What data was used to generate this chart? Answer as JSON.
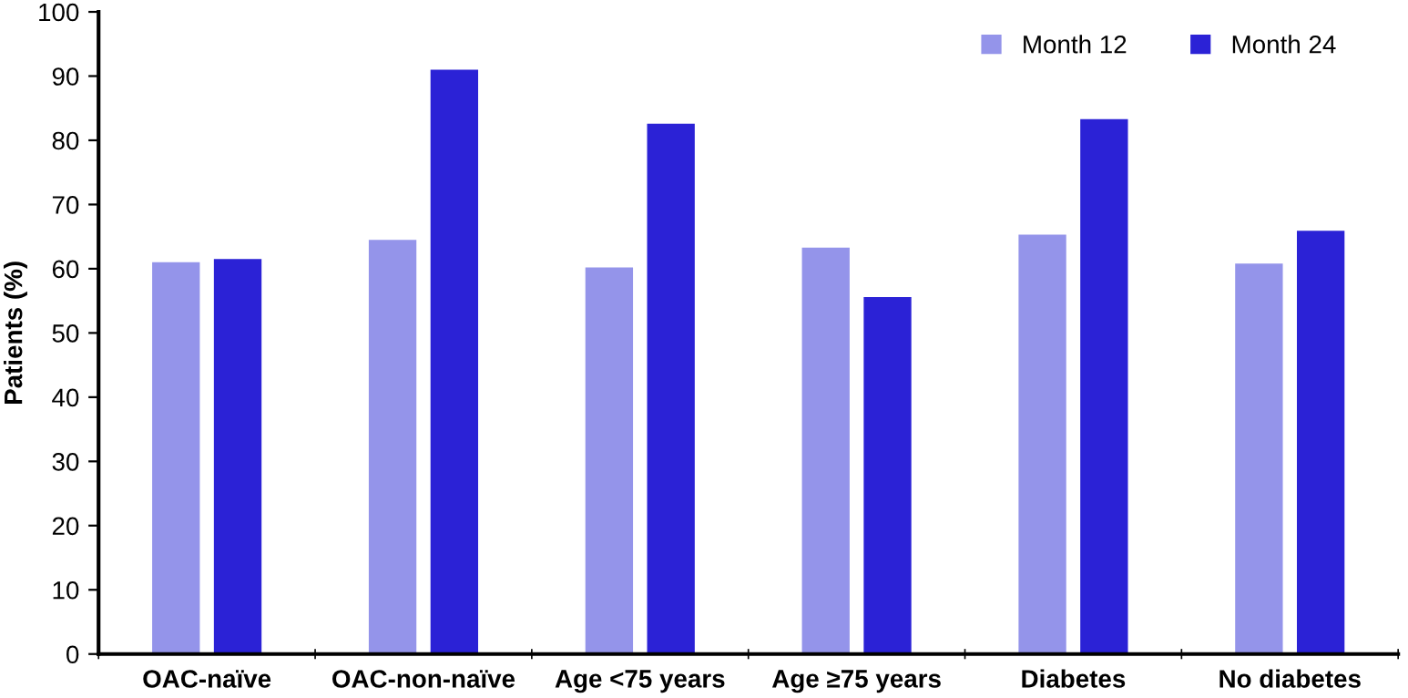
{
  "chart_data": {
    "type": "bar",
    "ylabel": "Patients (%)",
    "categories": [
      "OAC-naïve",
      "OAC-non-naïve",
      "Age <75 years",
      "Age ≥75 years",
      "Diabetes",
      "No diabetes"
    ],
    "series": [
      {
        "name": "Month 12",
        "color": "#9494ea",
        "values": [
          61,
          64.5,
          60.2,
          63.3,
          65.3,
          60.8
        ]
      },
      {
        "name": "Month 24",
        "color": "#2b22d6",
        "values": [
          61.5,
          91,
          82.6,
          55.6,
          83.3,
          65.9
        ]
      }
    ],
    "ylim": [
      0,
      100
    ],
    "yticks": [
      0,
      10,
      20,
      30,
      40,
      50,
      60,
      70,
      80,
      90,
      100
    ],
    "grid": false,
    "legend": "top right"
  }
}
